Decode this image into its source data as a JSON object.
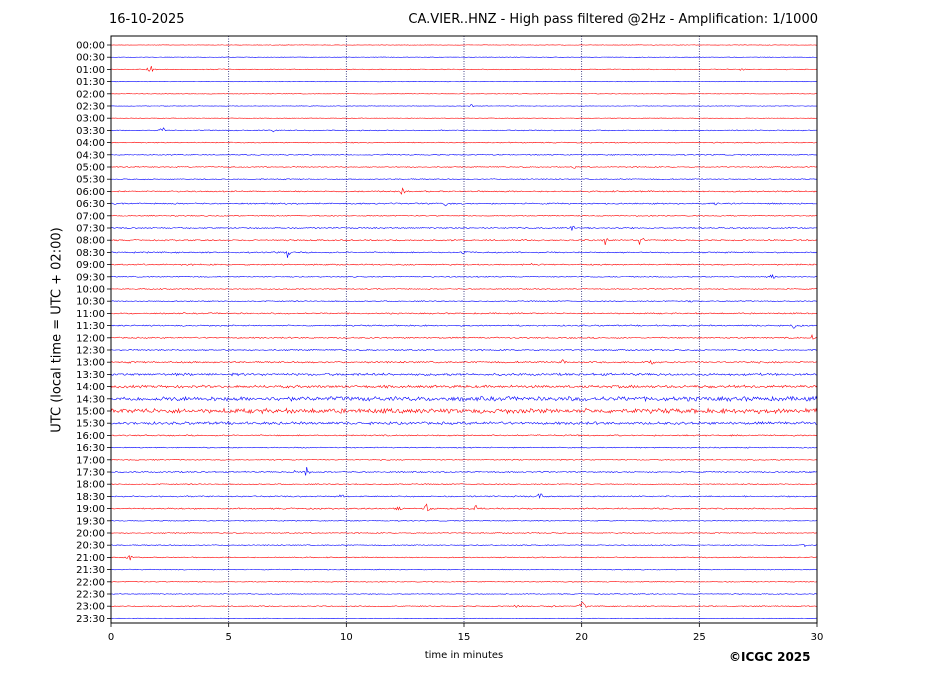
{
  "header": {
    "date": "16-10-2025",
    "title": "CA.VIER..HNZ - High pass filtered @2Hz - Amplification: 1/1000"
  },
  "footer": {
    "copyright": "©ICGC 2025"
  },
  "chart_data": {
    "type": "line",
    "xlabel": "time in minutes",
    "ylabel": "UTC (local time = UTC + 02:00)",
    "xlim": [
      0,
      30
    ],
    "x_ticks": [
      0,
      5,
      10,
      15,
      20,
      25,
      30
    ],
    "grid": "vertical dotted lines at 5-minute intervals",
    "trace_colors": [
      "#ff0000",
      "#0000ff"
    ],
    "rows": [
      "00:00",
      "00:30",
      "01:00",
      "01:30",
      "02:00",
      "02:30",
      "03:00",
      "03:30",
      "04:00",
      "04:30",
      "05:00",
      "05:30",
      "06:00",
      "06:30",
      "07:00",
      "07:30",
      "08:00",
      "08:30",
      "09:00",
      "09:30",
      "10:00",
      "10:30",
      "11:00",
      "11:30",
      "12:00",
      "12:30",
      "13:00",
      "13:30",
      "14:00",
      "14:30",
      "15:00",
      "15:30",
      "16:00",
      "16:30",
      "17:00",
      "17:30",
      "18:00",
      "18:30",
      "19:00",
      "19:30",
      "20:00",
      "20:30",
      "21:00",
      "21:30",
      "22:00",
      "22:30",
      "23:00",
      "23:30"
    ],
    "noise_level": [
      0.3,
      0.3,
      0.5,
      0.3,
      0.3,
      0.3,
      0.3,
      0.6,
      0.6,
      0.6,
      0.6,
      0.6,
      0.8,
      0.8,
      0.6,
      0.8,
      0.8,
      0.8,
      0.8,
      0.6,
      0.6,
      0.6,
      0.8,
      0.8,
      0.8,
      0.8,
      1.0,
      1.4,
      1.6,
      2.6,
      2.8,
      1.6,
      0.8,
      0.6,
      0.6,
      0.8,
      0.6,
      0.8,
      0.8,
      0.5,
      0.6,
      0.6,
      0.6,
      0.5,
      0.5,
      0.5,
      0.6,
      0.3
    ],
    "events": [
      {
        "row": "01:00",
        "minute": 1.7,
        "amplitude": 8
      },
      {
        "row": "01:00",
        "minute": 26.8,
        "amplitude": 2
      },
      {
        "row": "02:30",
        "minute": 15.3,
        "amplitude": 2
      },
      {
        "row": "03:30",
        "minute": 2.2,
        "amplitude": 5
      },
      {
        "row": "03:30",
        "minute": 6.9,
        "amplitude": 2
      },
      {
        "row": "04:30",
        "minute": 11.8,
        "amplitude": 2
      },
      {
        "row": "05:00",
        "minute": 19.7,
        "amplitude": 2
      },
      {
        "row": "06:00",
        "minute": 12.4,
        "amplitude": 5
      },
      {
        "row": "06:30",
        "minute": 14.2,
        "amplitude": 4
      },
      {
        "row": "06:30",
        "minute": 25.7,
        "amplitude": 3
      },
      {
        "row": "07:30",
        "minute": 19.6,
        "amplitude": 4
      },
      {
        "row": "08:00",
        "minute": 21.0,
        "amplitude": 6
      },
      {
        "row": "08:00",
        "minute": 22.5,
        "amplitude": 7
      },
      {
        "row": "08:30",
        "minute": 7.5,
        "amplitude": 5
      },
      {
        "row": "08:30",
        "minute": 15.0,
        "amplitude": 3
      },
      {
        "row": "09:00",
        "minute": 17.9,
        "amplitude": 3
      },
      {
        "row": "09:30",
        "minute": 28.1,
        "amplitude": 5
      },
      {
        "row": "10:30",
        "minute": 24.6,
        "amplitude": 2
      },
      {
        "row": "11:30",
        "minute": 29.0,
        "amplitude": 4
      },
      {
        "row": "12:00",
        "minute": 29.8,
        "amplitude": 3
      },
      {
        "row": "13:00",
        "minute": 23.0,
        "amplitude": 4
      },
      {
        "row": "13:00",
        "minute": 19.2,
        "amplitude": 3
      },
      {
        "row": "17:30",
        "minute": 8.3,
        "amplitude": 7
      },
      {
        "row": "17:30",
        "minute": 7.8,
        "amplitude": 3
      },
      {
        "row": "18:30",
        "minute": 18.2,
        "amplitude": 6
      },
      {
        "row": "18:30",
        "minute": 9.8,
        "amplitude": 3
      },
      {
        "row": "19:00",
        "minute": 13.4,
        "amplitude": 8
      },
      {
        "row": "19:00",
        "minute": 15.5,
        "amplitude": 4
      },
      {
        "row": "19:00",
        "minute": 12.2,
        "amplitude": 4
      },
      {
        "row": "20:30",
        "minute": 29.5,
        "amplitude": 2
      },
      {
        "row": "21:00",
        "minute": 0.8,
        "amplitude": 5
      },
      {
        "row": "23:00",
        "minute": 20.0,
        "amplitude": 9
      },
      {
        "row": "23:00",
        "minute": 18.8,
        "amplitude": 3
      },
      {
        "row": "23:00",
        "minute": 17.2,
        "amplitude": 2
      }
    ]
  }
}
